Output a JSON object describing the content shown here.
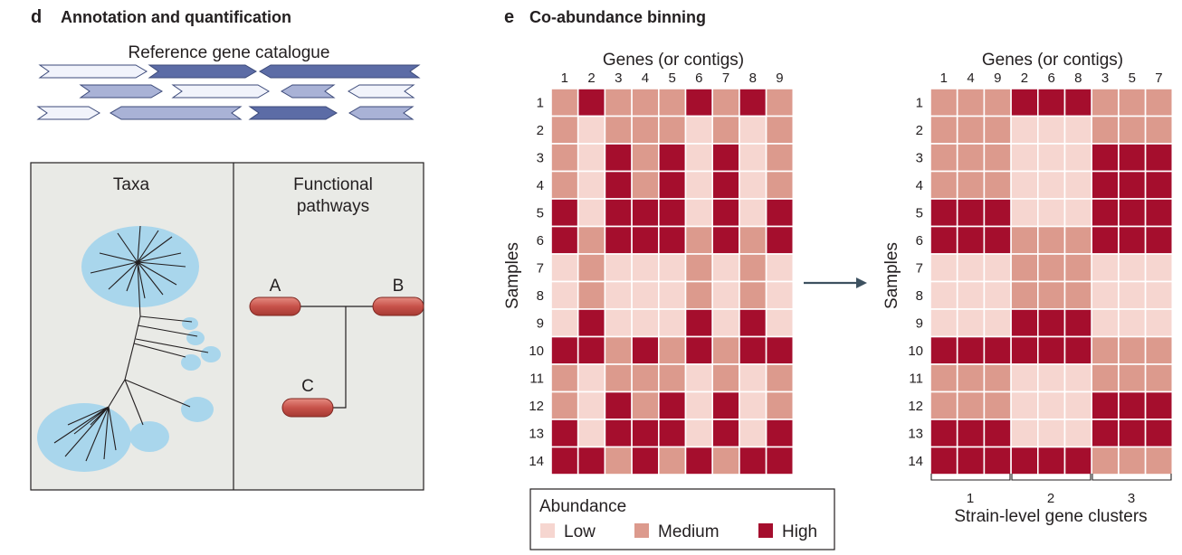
{
  "panel_d": {
    "letter": "d",
    "title": "Annotation and quantification",
    "catalogue_label": "Reference gene catalogue",
    "taxa_label": "Taxa",
    "pathways_label_line1": "Functional",
    "pathways_label_line2": "pathways",
    "node_a": "A",
    "node_b": "B",
    "node_c": "C"
  },
  "panel_e": {
    "letter": "e",
    "title": "Co-abundance binning",
    "genes_label": "Genes (or contigs)",
    "samples_label": "Samples",
    "legend_title": "Abundance",
    "legend_low": "Low",
    "legend_medium": "Medium",
    "legend_high": "High",
    "clusters_label": "Strain-level gene clusters",
    "cluster_1": "1",
    "cluster_2": "2",
    "cluster_3": "3"
  },
  "colors": {
    "low": "#f6d6d0",
    "medium": "#dc9a8d",
    "high": "#a50e2d",
    "gene_light": "#f1f3fb",
    "gene_mid": "#a9b2d6",
    "gene_dark": "#5c6ca6",
    "taxa_blob": "#a9d6ec",
    "panel_bg": "#e9eae6",
    "node_red": "#c7524a"
  },
  "heatmap": {
    "gene_order": [
      "1",
      "2",
      "3",
      "4",
      "5",
      "6",
      "7",
      "8",
      "9"
    ],
    "sorted_gene_order": [
      "1",
      "4",
      "9",
      "2",
      "6",
      "8",
      "3",
      "5",
      "7"
    ],
    "sample_order": [
      "1",
      "2",
      "3",
      "4",
      "5",
      "6",
      "7",
      "8",
      "9",
      "10",
      "11",
      "12",
      "13",
      "14"
    ],
    "levels": [
      [
        "M",
        "H",
        "M",
        "M",
        "M",
        "H",
        "M",
        "H",
        "M"
      ],
      [
        "M",
        "L",
        "M",
        "M",
        "M",
        "L",
        "M",
        "L",
        "M"
      ],
      [
        "M",
        "L",
        "H",
        "M",
        "H",
        "L",
        "H",
        "L",
        "M"
      ],
      [
        "M",
        "L",
        "H",
        "M",
        "H",
        "L",
        "H",
        "L",
        "M"
      ],
      [
        "H",
        "L",
        "H",
        "H",
        "H",
        "L",
        "H",
        "L",
        "H"
      ],
      [
        "H",
        "M",
        "H",
        "H",
        "H",
        "M",
        "H",
        "M",
        "H"
      ],
      [
        "L",
        "M",
        "L",
        "L",
        "L",
        "M",
        "L",
        "M",
        "L"
      ],
      [
        "L",
        "M",
        "L",
        "L",
        "L",
        "M",
        "L",
        "M",
        "L"
      ],
      [
        "L",
        "H",
        "L",
        "L",
        "L",
        "H",
        "L",
        "H",
        "L"
      ],
      [
        "H",
        "H",
        "M",
        "H",
        "M",
        "H",
        "M",
        "H",
        "H"
      ],
      [
        "M",
        "L",
        "M",
        "M",
        "M",
        "L",
        "M",
        "L",
        "M"
      ],
      [
        "M",
        "L",
        "H",
        "M",
        "H",
        "L",
        "H",
        "L",
        "M"
      ],
      [
        "H",
        "L",
        "H",
        "H",
        "H",
        "L",
        "H",
        "L",
        "H"
      ],
      [
        "H",
        "H",
        "M",
        "H",
        "M",
        "H",
        "M",
        "H",
        "H"
      ]
    ]
  }
}
